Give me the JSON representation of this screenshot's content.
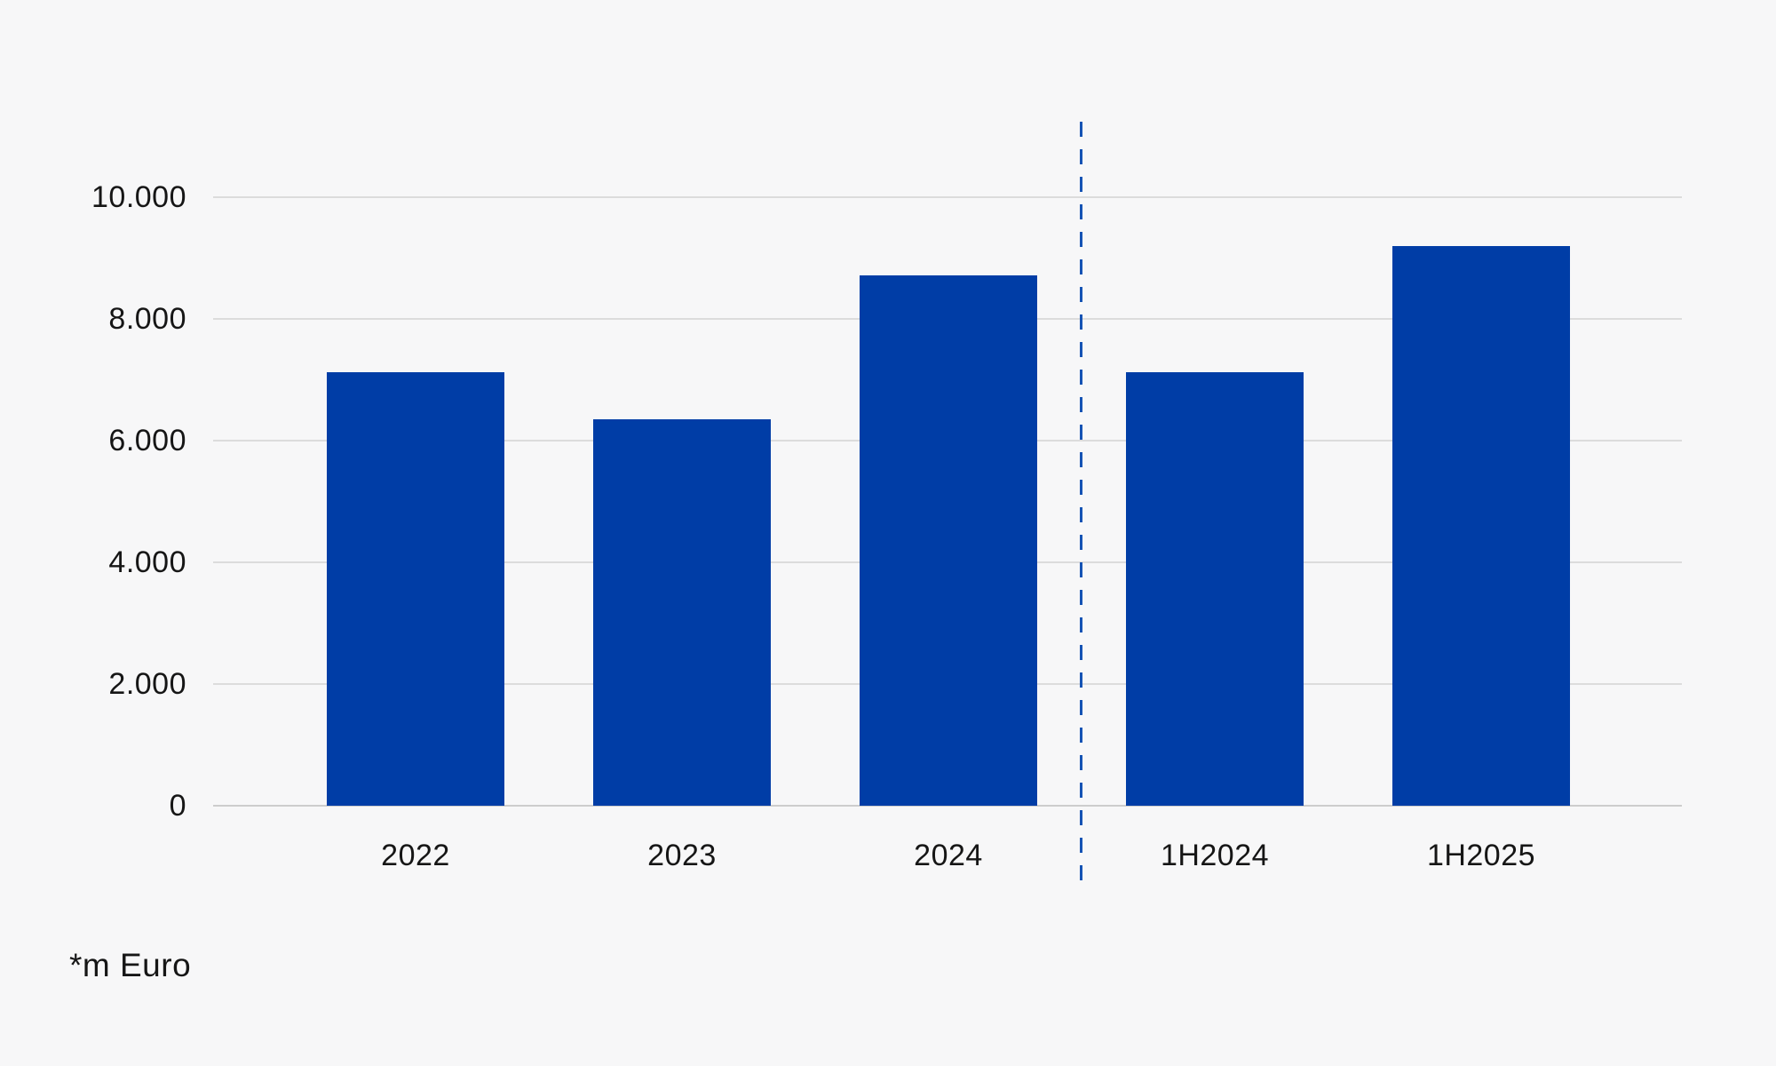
{
  "page": {
    "background": "#f7f7f8",
    "text_color": "#161616",
    "gridline_color": "#dcdcdc",
    "baseline_color": "#cdcdcd"
  },
  "chart_data": {
    "type": "bar",
    "title": "",
    "xlabel": "",
    "ylabel": "",
    "categories": [
      "2022",
      "2023",
      "2024",
      "1H2024",
      "1H2025"
    ],
    "values": [
      7120,
      6350,
      8720,
      7120,
      9190
    ],
    "bar_color": "#003da6",
    "ylim": [
      0,
      10000
    ],
    "yticks": [
      {
        "value": 0,
        "label": "0"
      },
      {
        "value": 2000,
        "label": "2.000"
      },
      {
        "value": 4000,
        "label": "4.000"
      },
      {
        "value": 6000,
        "label": "6.000"
      },
      {
        "value": 8000,
        "label": "8.000"
      },
      {
        "value": 10000,
        "label": "10.000"
      }
    ],
    "grid": true,
    "legend": false,
    "separator": {
      "between": [
        "2024",
        "1H2024"
      ],
      "style": "dashed",
      "color": "#1553b4"
    },
    "annotation": "*m Euro"
  }
}
